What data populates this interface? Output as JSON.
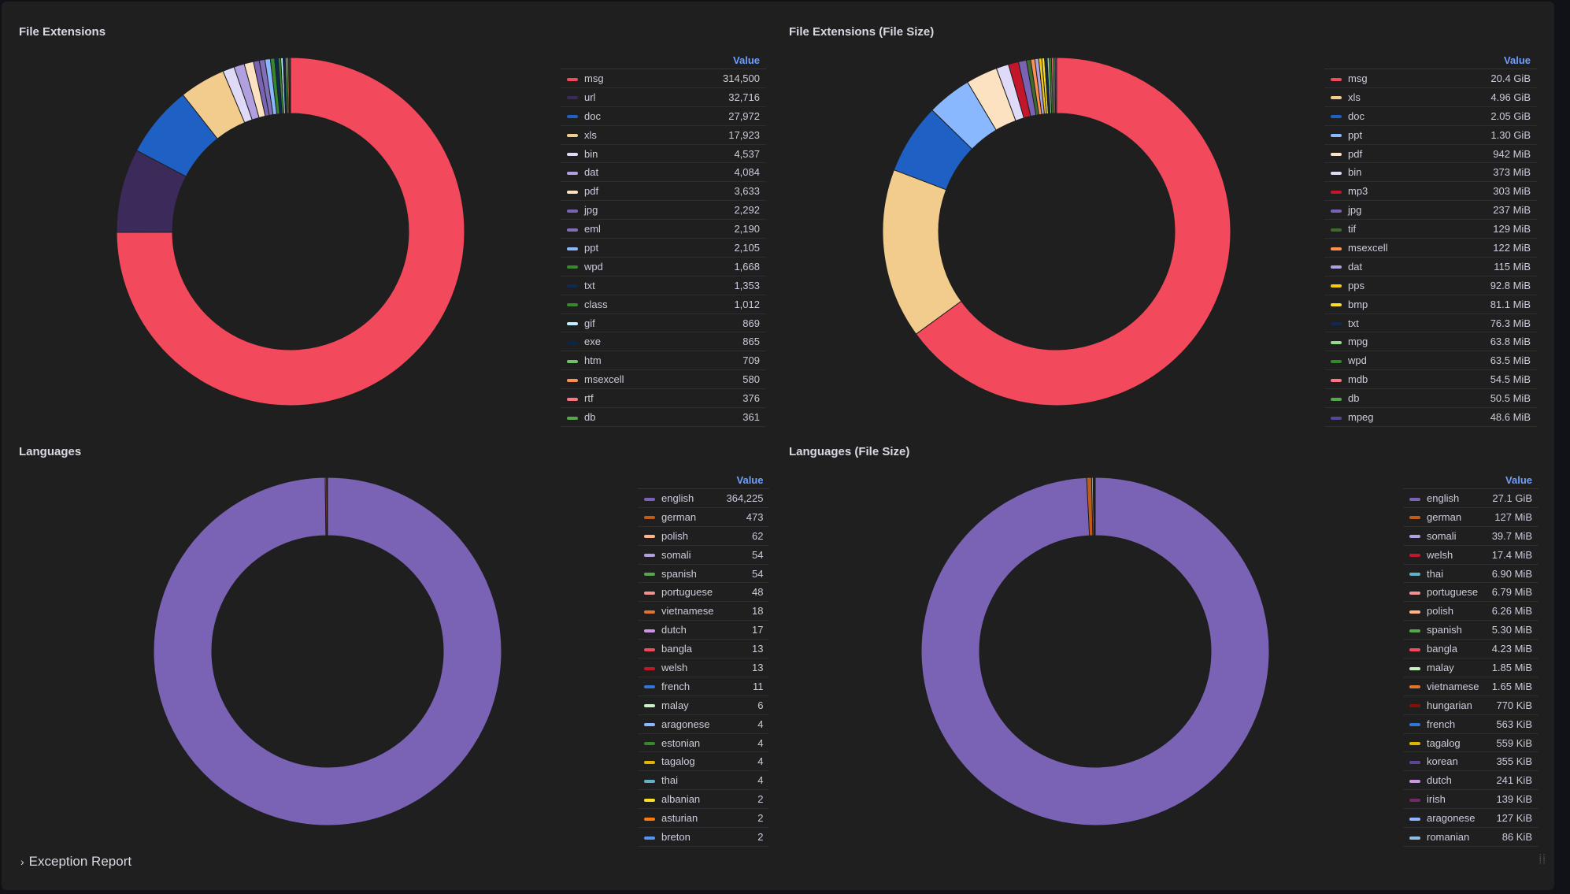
{
  "panels": [
    {
      "title": "File Extensions",
      "value_header": "Value",
      "items": [
        {
          "label": "msg",
          "value": "314,500",
          "color": "#f2495c"
        },
        {
          "label": "url",
          "value": "32,716",
          "color": "#3b2a5a"
        },
        {
          "label": "doc",
          "value": "27,972",
          "color": "#1f60c4"
        },
        {
          "label": "xls",
          "value": "17,923",
          "color": "#f2cc8c"
        },
        {
          "label": "bin",
          "value": "4,537",
          "color": "#dedaf7"
        },
        {
          "label": "dat",
          "value": "4,084",
          "color": "#b0a0e0"
        },
        {
          "label": "pdf",
          "value": "3,633",
          "color": "#fce2c0"
        },
        {
          "label": "jpg",
          "value": "2,292",
          "color": "#7a62b4"
        },
        {
          "label": "eml",
          "value": "2,190",
          "color": "#806eb7"
        },
        {
          "label": "ppt",
          "value": "2,105",
          "color": "#8ab8ff"
        },
        {
          "label": "wpd",
          "value": "1,668",
          "color": "#37872d"
        },
        {
          "label": "txt",
          "value": "1,353",
          "color": "#0e2a52"
        },
        {
          "label": "class",
          "value": "1,012",
          "color": "#37872d"
        },
        {
          "label": "gif",
          "value": "869",
          "color": "#c0f0ff"
        },
        {
          "label": "exe",
          "value": "865",
          "color": "#0b2548"
        },
        {
          "label": "htm",
          "value": "709",
          "color": "#73bf69"
        },
        {
          "label": "msexcell",
          "value": "580",
          "color": "#ff9050"
        },
        {
          "label": "rtf",
          "value": "376",
          "color": "#ff7383"
        },
        {
          "label": "db",
          "value": "361",
          "color": "#56a64b"
        }
      ]
    },
    {
      "title": "File Extensions (File Size)",
      "value_header": "Value",
      "items": [
        {
          "label": "msg",
          "value": "20.4 GiB",
          "color": "#f2495c"
        },
        {
          "label": "xls",
          "value": "4.96 GiB",
          "color": "#f2cc8c"
        },
        {
          "label": "doc",
          "value": "2.05 GiB",
          "color": "#1f60c4"
        },
        {
          "label": "ppt",
          "value": "1.30 GiB",
          "color": "#8ab8ff"
        },
        {
          "label": "pdf",
          "value": "942 MiB",
          "color": "#fce2c0"
        },
        {
          "label": "bin",
          "value": "373 MiB",
          "color": "#dedaf7"
        },
        {
          "label": "mp3",
          "value": "303 MiB",
          "color": "#c4162a"
        },
        {
          "label": "jpg",
          "value": "237 MiB",
          "color": "#7a62b4"
        },
        {
          "label": "tif",
          "value": "129 MiB",
          "color": "#3d6b2e"
        },
        {
          "label": "msexcell",
          "value": "122 MiB",
          "color": "#ff9050"
        },
        {
          "label": "dat",
          "value": "115 MiB",
          "color": "#b0a0e0"
        },
        {
          "label": "pps",
          "value": "92.8 MiB",
          "color": "#f2cc0c"
        },
        {
          "label": "bmp",
          "value": "81.1 MiB",
          "color": "#fade2a"
        },
        {
          "label": "txt",
          "value": "76.3 MiB",
          "color": "#0e2a52"
        },
        {
          "label": "mpg",
          "value": "63.8 MiB",
          "color": "#96d98d"
        },
        {
          "label": "wpd",
          "value": "63.5 MiB",
          "color": "#37872d"
        },
        {
          "label": "mdb",
          "value": "54.5 MiB",
          "color": "#ff7383"
        },
        {
          "label": "db",
          "value": "50.5 MiB",
          "color": "#56a64b"
        },
        {
          "label": "mpeg",
          "value": "48.6 MiB",
          "color": "#5a4497"
        }
      ]
    },
    {
      "title": "Languages",
      "value_header": "Value",
      "items": [
        {
          "label": "english",
          "value": "364,225",
          "color": "#7a62b4"
        },
        {
          "label": "german",
          "value": "473",
          "color": "#c15c17"
        },
        {
          "label": "polish",
          "value": "62",
          "color": "#ffb387"
        },
        {
          "label": "somali",
          "value": "54",
          "color": "#b0a0e0"
        },
        {
          "label": "spanish",
          "value": "54",
          "color": "#56a64b"
        },
        {
          "label": "portuguese",
          "value": "48",
          "color": "#f29191"
        },
        {
          "label": "vietnamese",
          "value": "18",
          "color": "#e0752d"
        },
        {
          "label": "dutch",
          "value": "17",
          "color": "#ca95e5"
        },
        {
          "label": "bangla",
          "value": "13",
          "color": "#f2495c"
        },
        {
          "label": "welsh",
          "value": "13",
          "color": "#c4162a"
        },
        {
          "label": "french",
          "value": "11",
          "color": "#3274d9"
        },
        {
          "label": "malay",
          "value": "6",
          "color": "#c8f2c2"
        },
        {
          "label": "aragonese",
          "value": "4",
          "color": "#8ab8ff"
        },
        {
          "label": "estonian",
          "value": "4",
          "color": "#37872d"
        },
        {
          "label": "tagalog",
          "value": "4",
          "color": "#e0b400"
        },
        {
          "label": "thai",
          "value": "4",
          "color": "#64b0c8"
        },
        {
          "label": "albanian",
          "value": "2",
          "color": "#fade2a"
        },
        {
          "label": "asturian",
          "value": "2",
          "color": "#ff780a"
        },
        {
          "label": "breton",
          "value": "2",
          "color": "#5794f2"
        }
      ]
    },
    {
      "title": "Languages (File Size)",
      "value_header": "Value",
      "items": [
        {
          "label": "english",
          "value": "27.1 GiB",
          "color": "#7a62b4"
        },
        {
          "label": "german",
          "value": "127 MiB",
          "color": "#c15c17"
        },
        {
          "label": "somali",
          "value": "39.7 MiB",
          "color": "#b0a0e0"
        },
        {
          "label": "welsh",
          "value": "17.4 MiB",
          "color": "#c4162a"
        },
        {
          "label": "thai",
          "value": "6.90 MiB",
          "color": "#64b0c8"
        },
        {
          "label": "portuguese",
          "value": "6.79 MiB",
          "color": "#f29191"
        },
        {
          "label": "polish",
          "value": "6.26 MiB",
          "color": "#ffb387"
        },
        {
          "label": "spanish",
          "value": "5.30 MiB",
          "color": "#56a64b"
        },
        {
          "label": "bangla",
          "value": "4.23 MiB",
          "color": "#f2495c"
        },
        {
          "label": "malay",
          "value": "1.85 MiB",
          "color": "#c8f2c2"
        },
        {
          "label": "vietnamese",
          "value": "1.65 MiB",
          "color": "#e0752d"
        },
        {
          "label": "hungarian",
          "value": "770 KiB",
          "color": "#890f02"
        },
        {
          "label": "french",
          "value": "563 KiB",
          "color": "#3274d9"
        },
        {
          "label": "tagalog",
          "value": "559 KiB",
          "color": "#e0b400"
        },
        {
          "label": "korean",
          "value": "355 KiB",
          "color": "#5a4497"
        },
        {
          "label": "dutch",
          "value": "241 KiB",
          "color": "#ca95e5"
        },
        {
          "label": "irish",
          "value": "139 KiB",
          "color": "#6f2a6a"
        },
        {
          "label": "aragonese",
          "value": "127 KiB",
          "color": "#8ab8ff"
        },
        {
          "label": "romanian",
          "value": "86 KiB",
          "color": "#8fbce0"
        }
      ]
    }
  ],
  "footer": {
    "row_title": "Exception Report",
    "chevron": "›"
  }
}
